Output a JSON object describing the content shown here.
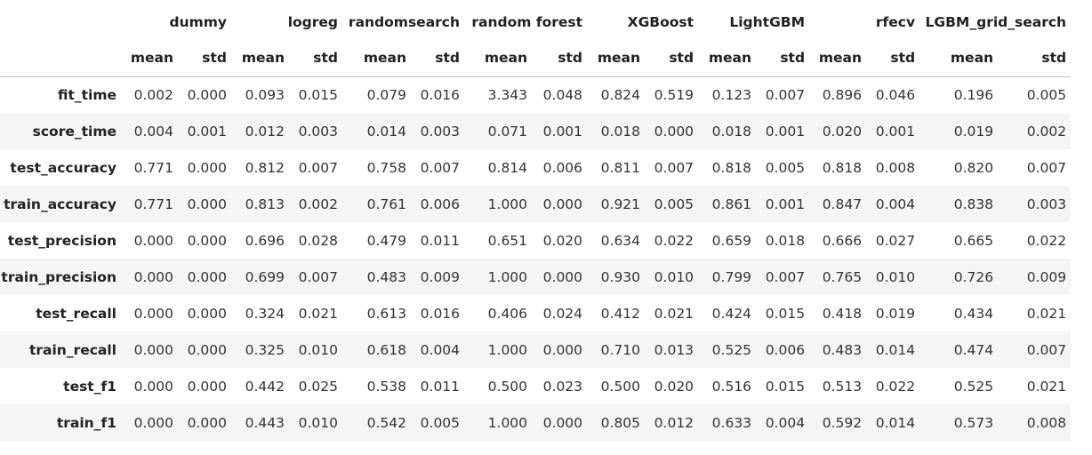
{
  "table": {
    "models": [
      "dummy",
      "logreg",
      "randomsearch",
      "random forest",
      "XGBoost",
      "LightGBM",
      "rfecv",
      "LGBM_grid_search"
    ],
    "stats": [
      "mean",
      "std"
    ],
    "rows": [
      {
        "label": "fit_time",
        "values": [
          "0.002",
          "0.000",
          "0.093",
          "0.015",
          "0.079",
          "0.016",
          "3.343",
          "0.048",
          "0.824",
          "0.519",
          "0.123",
          "0.007",
          "0.896",
          "0.046",
          "0.196",
          "0.005"
        ]
      },
      {
        "label": "score_time",
        "values": [
          "0.004",
          "0.001",
          "0.012",
          "0.003",
          "0.014",
          "0.003",
          "0.071",
          "0.001",
          "0.018",
          "0.000",
          "0.018",
          "0.001",
          "0.020",
          "0.001",
          "0.019",
          "0.002"
        ]
      },
      {
        "label": "test_accuracy",
        "values": [
          "0.771",
          "0.000",
          "0.812",
          "0.007",
          "0.758",
          "0.007",
          "0.814",
          "0.006",
          "0.811",
          "0.007",
          "0.818",
          "0.005",
          "0.818",
          "0.008",
          "0.820",
          "0.007"
        ]
      },
      {
        "label": "train_accuracy",
        "values": [
          "0.771",
          "0.000",
          "0.813",
          "0.002",
          "0.761",
          "0.006",
          "1.000",
          "0.000",
          "0.921",
          "0.005",
          "0.861",
          "0.001",
          "0.847",
          "0.004",
          "0.838",
          "0.003"
        ]
      },
      {
        "label": "test_precision",
        "values": [
          "0.000",
          "0.000",
          "0.696",
          "0.028",
          "0.479",
          "0.011",
          "0.651",
          "0.020",
          "0.634",
          "0.022",
          "0.659",
          "0.018",
          "0.666",
          "0.027",
          "0.665",
          "0.022"
        ]
      },
      {
        "label": "train_precision",
        "values": [
          "0.000",
          "0.000",
          "0.699",
          "0.007",
          "0.483",
          "0.009",
          "1.000",
          "0.000",
          "0.930",
          "0.010",
          "0.799",
          "0.007",
          "0.765",
          "0.010",
          "0.726",
          "0.009"
        ]
      },
      {
        "label": "test_recall",
        "values": [
          "0.000",
          "0.000",
          "0.324",
          "0.021",
          "0.613",
          "0.016",
          "0.406",
          "0.024",
          "0.412",
          "0.021",
          "0.424",
          "0.015",
          "0.418",
          "0.019",
          "0.434",
          "0.021"
        ]
      },
      {
        "label": "train_recall",
        "values": [
          "0.000",
          "0.000",
          "0.325",
          "0.010",
          "0.618",
          "0.004",
          "1.000",
          "0.000",
          "0.710",
          "0.013",
          "0.525",
          "0.006",
          "0.483",
          "0.014",
          "0.474",
          "0.007"
        ]
      },
      {
        "label": "test_f1",
        "values": [
          "0.000",
          "0.000",
          "0.442",
          "0.025",
          "0.538",
          "0.011",
          "0.500",
          "0.023",
          "0.500",
          "0.020",
          "0.516",
          "0.015",
          "0.513",
          "0.022",
          "0.525",
          "0.021"
        ]
      },
      {
        "label": "train_f1",
        "values": [
          "0.000",
          "0.000",
          "0.443",
          "0.010",
          "0.542",
          "0.005",
          "1.000",
          "0.000",
          "0.805",
          "0.012",
          "0.633",
          "0.004",
          "0.592",
          "0.014",
          "0.573",
          "0.008"
        ]
      }
    ]
  }
}
